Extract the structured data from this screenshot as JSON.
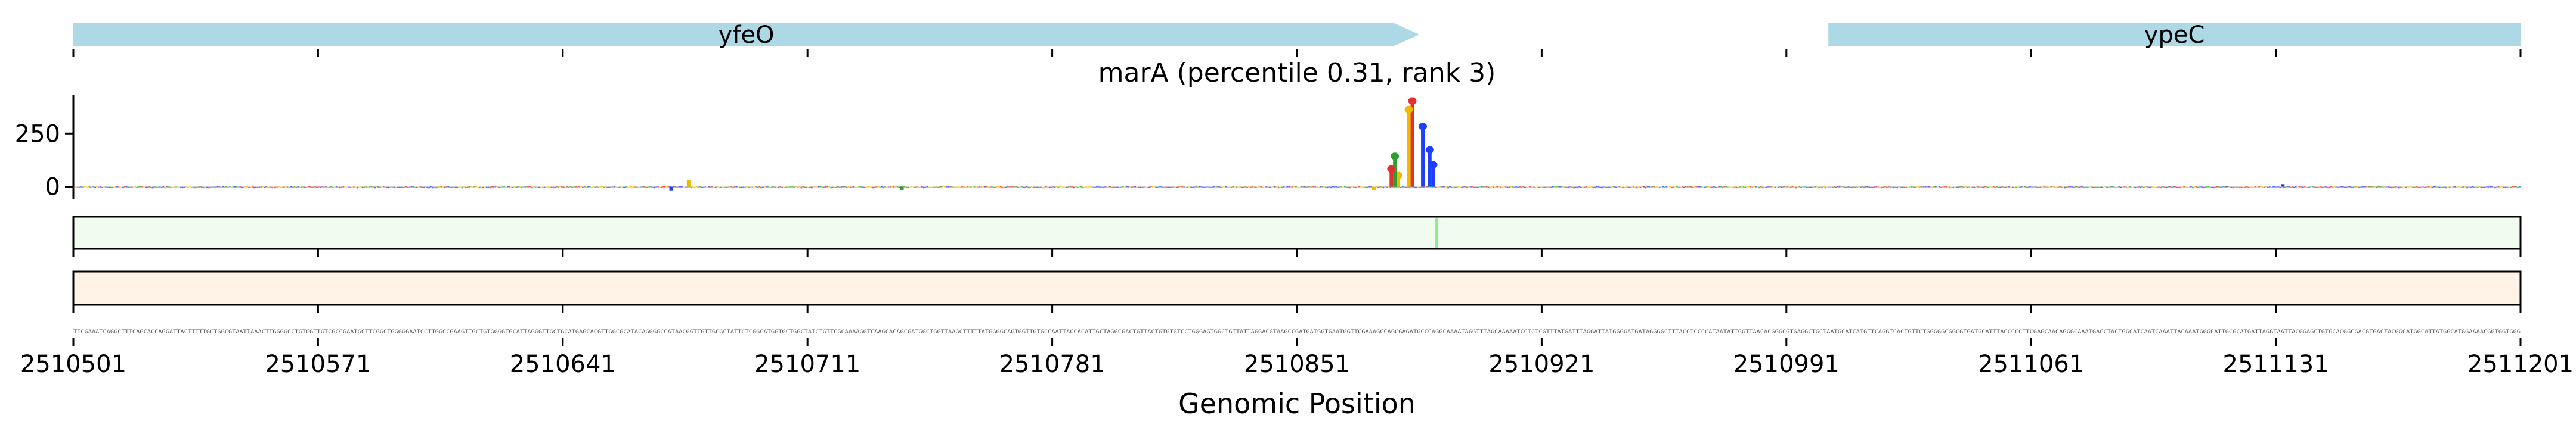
{
  "chart_data": {
    "type": "genome-track",
    "title": "marA (percentile 0.31, rank 3)",
    "xlabel": "Genomic Position",
    "x_range": [
      2510501,
      2511201
    ],
    "x_ticks": [
      2510501,
      2510571,
      2510641,
      2510711,
      2510781,
      2510851,
      2510921,
      2510991,
      2511061,
      2511131,
      2511201
    ],
    "genes": [
      {
        "name": "yfeO",
        "start": 2510501,
        "end": 2510886,
        "strand": "+",
        "color": "#add8e6"
      },
      {
        "name": "ypeC",
        "start": 2511003,
        "end": 2511201,
        "strand": "+",
        "color": "#add8e6"
      }
    ],
    "attribution": {
      "y_ticks": [
        0,
        250
      ],
      "ylim": [
        -60,
        430
      ],
      "peaks": [
        {
          "x": 2510884,
          "value": 420,
          "base": "T"
        },
        {
          "x": 2510883,
          "value": 380,
          "base": "G"
        },
        {
          "x": 2510887,
          "value": 300,
          "base": "C"
        },
        {
          "x": 2510889,
          "value": 190,
          "base": "C"
        },
        {
          "x": 2510890,
          "value": 120,
          "base": "C"
        },
        {
          "x": 2510880,
          "value": 70,
          "base": "G"
        },
        {
          "x": 2510879,
          "value": 160,
          "base": "A"
        },
        {
          "x": 2510878,
          "value": 100,
          "base": "T"
        },
        {
          "x": 2510677,
          "value": 30,
          "base": "G"
        },
        {
          "x": 2510672,
          "value": -20,
          "base": "C"
        },
        {
          "x": 2510738,
          "value": -15,
          "base": "A"
        },
        {
          "x": 2510738,
          "value": -15,
          "base": "A"
        },
        {
          "x": 2510873,
          "value": -15,
          "base": "G"
        },
        {
          "x": 2511133,
          "value": 12,
          "base": "C"
        }
      ]
    },
    "tracks": [
      {
        "name": "track-1",
        "fill": "#f2fbf0",
        "marker_x": 2510891,
        "marker_color": "#90ee90"
      },
      {
        "name": "track-2",
        "fill": "#fff3e8"
      }
    ],
    "sequence": "TTCGAAATCAGGCTTTCAGCACCAGGATTACTTTTTGCTGGCGTAATTAAACTTGGGGCCTGTCGTTGTCGCCGAATGCTTCGGCTGGGGGAATCCTTGGCCGAAGTTGCTGTGGGGTGCATTAGGGTTGCTGCATGAGCACGTTGGCGCATACAGGGGCCATAACGGTTGTTGCGCTATTCTCGGCATGGTGCTGGCTATCTGTTCGCAAAAGGTCAAGCACAGCGATGGCTGGTTAAGCTTTTTATGGGGCAGTGGTTGTGCCAATTACCACATTGCTAGGCGACTGTTACTGTGTGTCCTGGGAGTGGCTGTTATTAGGACGTAAGCCGATGATGGTGAATGGTTCGAAAGCCAGCGAGATGCCCAGGCAAAATAGGTTTAGCAAAAATCCTCTCGTTTATGATTTAGGATTATGGGGATGATAGGGGCTTTACCTCCCCATAATATTGGTTAACACGGGCGTGAGGCTGCTAATGCATCATGTTCAGGTCACTGTTCTGGGGGCGGCGTGATGCATTTACCCCCTTCGAGCAACAGGGCAAATGACCTACTGGCATCAATCAAATTACAAATGGGCATTGCGCATGATTAGGTAATTACGGAGCTGTGCACGGCGACGTGACTACGGCATGGCATTATGGCATGGAAAACGGTGGTGGG"
  }
}
